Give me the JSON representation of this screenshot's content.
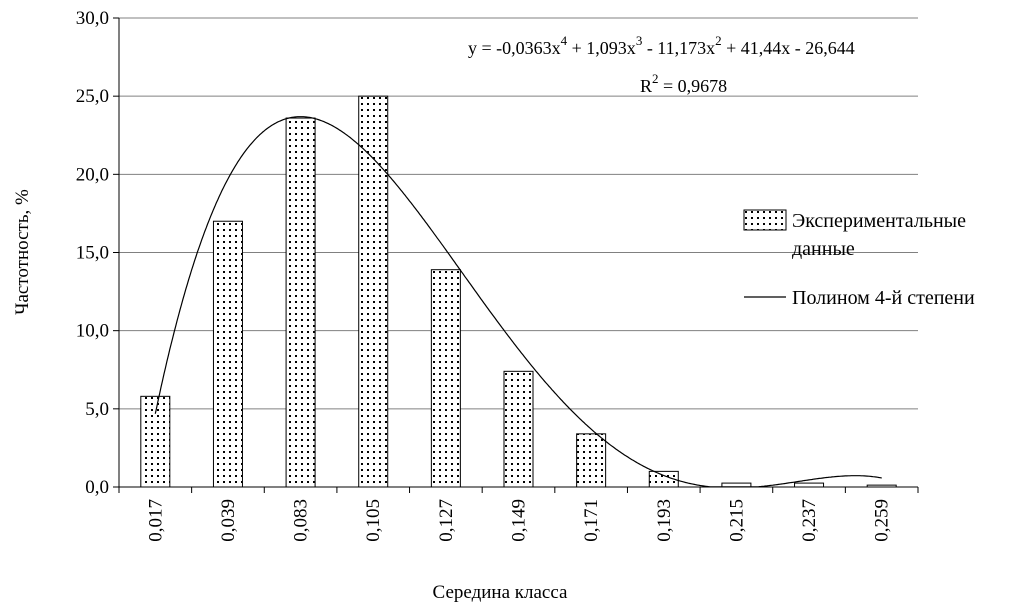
{
  "chart_data": {
    "type": "bar",
    "title": "",
    "xlabel": "Середина класса",
    "ylabel": "Частотность, %",
    "categories": [
      "0,017",
      "0,039",
      "0,083",
      "0,105",
      "0,127",
      "0,149",
      "0,171",
      "0,193",
      "0,215",
      "0,237",
      "0,259"
    ],
    "series": [
      {
        "name": "Экспериментальные данные",
        "values": [
          5.8,
          17.0,
          23.6,
          25.0,
          13.9,
          7.4,
          3.4,
          1.0,
          0.25,
          0.25,
          0.12
        ],
        "pattern": "dotted"
      }
    ],
    "trendline": {
      "name": "Полином 4-й степени",
      "coefficients": [
        -0.0363,
        1.093,
        -11.173,
        41.44,
        -26.644
      ],
      "x_variable": "category index (1..11)",
      "equation_parts": [
        "y = -0,0363x",
        "4",
        " + 1,093x",
        "3",
        " - 11,173x",
        "2",
        " + 41,44x - 26,644"
      ],
      "r2_parts": [
        "R",
        "2",
        " = 0,9678"
      ]
    },
    "ylim": [
      0,
      30
    ],
    "yticks": [
      "0,0",
      "5,0",
      "10,0",
      "15,0",
      "20,0",
      "25,0",
      "30,0"
    ],
    "grid": true,
    "legend": "right",
    "colors": {
      "axis": "#000000",
      "grid": "#808080",
      "bar_fill": "#ffffff",
      "bar_dots": "#000000"
    }
  }
}
